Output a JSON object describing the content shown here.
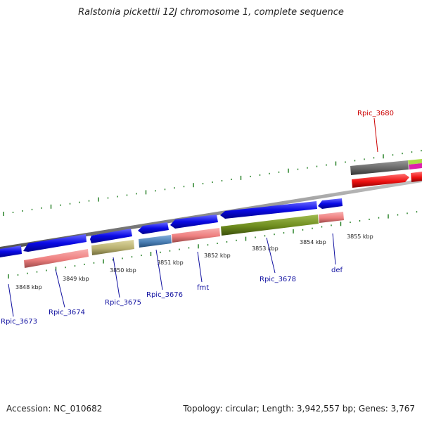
{
  "title": "Ralstonia pickettii 12J chromosome 1, complete sequence",
  "accession_text": "Accession: NC_010682",
  "summary_text": "Topology: circular; Length: 3,942,557 bp; Genes: 3,767",
  "scale_labels": [
    "3848 kbp",
    "3849 kbp",
    "3850 kbp",
    "3851 kbp",
    "3852 kbp",
    "3853 kbp",
    "3854 kbp",
    "3855 kbp"
  ],
  "gene_labels": [
    {
      "name": "Rpic_3673",
      "color": "#1010a0"
    },
    {
      "name": "Rpic_3674",
      "color": "#1010a0"
    },
    {
      "name": "Rpic_3675",
      "color": "#1010a0"
    },
    {
      "name": "Rpic_3676",
      "color": "#1010a0"
    },
    {
      "name": "fmt",
      "color": "#1010a0"
    },
    {
      "name": "Rpic_3678",
      "color": "#1010a0"
    },
    {
      "name": "def",
      "color": "#1010a0"
    },
    {
      "name": "Rpic_3680",
      "color": "#cc0000"
    }
  ],
  "colors": {
    "cds": "#0a0ae6",
    "gene": "#ee7f7f",
    "backbone": "#8c8c8c",
    "olive": "#6e8c1e",
    "khaki": "#b8b070",
    "steel": "#4a7fb5",
    "grey_block": "#666666",
    "red_block": "#ee1111",
    "lime": "#aadd44",
    "magenta": "#dd22aa",
    "tick": "#1a7a1a"
  }
}
